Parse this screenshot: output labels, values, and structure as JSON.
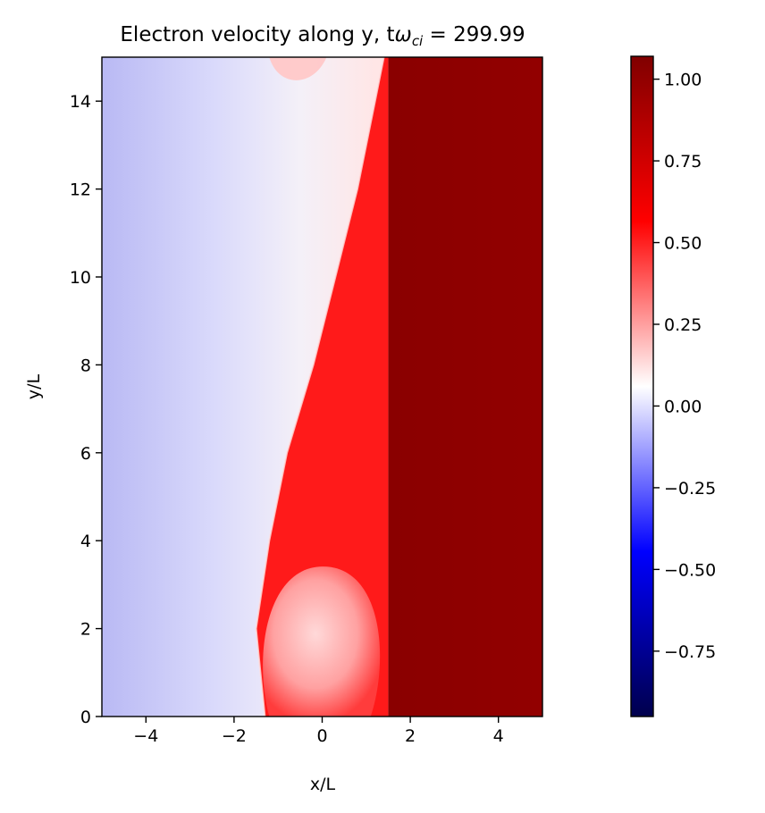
{
  "chart_data": {
    "type": "heatmap",
    "title": "Electron velocity along y, t",
    "title_symbol": "ω",
    "title_subscript": "ci",
    "title_value": " = 299.99",
    "xlabel": "x/L",
    "ylabel": "y/L",
    "xlim": [
      -5,
      5
    ],
    "ylim": [
      0,
      15
    ],
    "x_ticks": [
      -4,
      -2,
      0,
      2,
      4
    ],
    "y_ticks": [
      0,
      2,
      4,
      6,
      8,
      10,
      12,
      14
    ],
    "colormap": "seismic",
    "colormap_stops": [
      "#00004c",
      "#0000ff",
      "#ffffff",
      "#ff0000",
      "#800000"
    ],
    "colorbar": {
      "range": [
        -0.95,
        1.07
      ],
      "ticks": [
        1.0,
        0.75,
        0.5,
        0.25,
        0.0,
        -0.25,
        -0.5,
        -0.75
      ],
      "tick_labels": [
        "1.00",
        "0.75",
        "0.50",
        "0.25",
        "0.00",
        "−0.25",
        "−0.50",
        "−0.75"
      ]
    },
    "field_description": {
      "left_region_value": -0.05,
      "right_region_value": 1.05,
      "boundary_x_at_y": [
        [
          0,
          -1.3
        ],
        [
          2,
          -1.5
        ],
        [
          4,
          -1.2
        ],
        [
          6,
          -0.8
        ],
        [
          8,
          -0.2
        ],
        [
          10,
          0.3
        ],
        [
          12,
          0.8
        ],
        [
          14,
          1.2
        ],
        [
          15,
          1.4
        ]
      ],
      "dark_front_x_at_y": [
        [
          0,
          1.5
        ],
        [
          5,
          1.5
        ],
        [
          10,
          1.5
        ],
        [
          15,
          1.5
        ]
      ]
    }
  }
}
